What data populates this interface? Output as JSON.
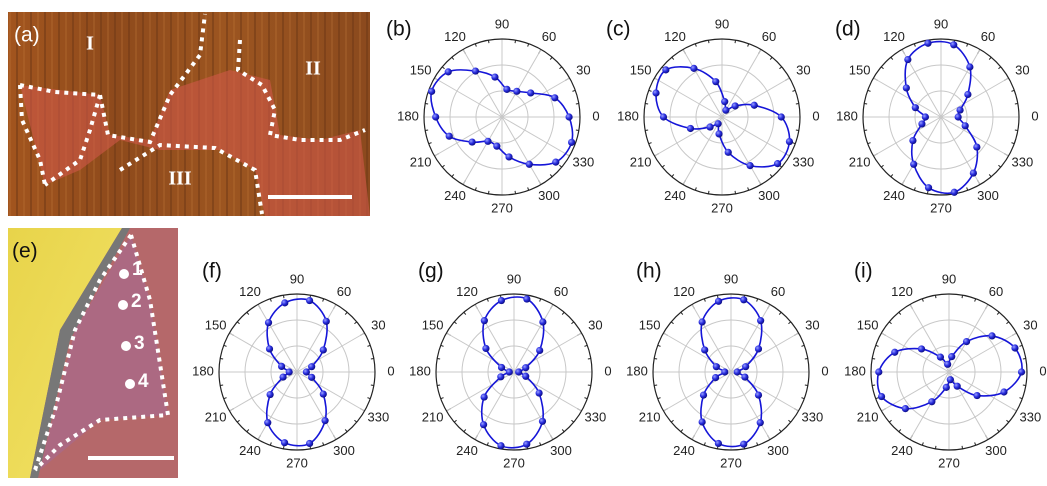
{
  "images": [
    {
      "label": "(a)",
      "regions": [
        "I",
        "II",
        "III"
      ]
    },
    {
      "label": "(e)",
      "spots": [
        "1",
        "2",
        "3",
        "4"
      ]
    }
  ],
  "chart_data": [
    {
      "type": "polar",
      "panel": "(b)",
      "color": "#1515d8",
      "rlim": [
        0,
        1
      ],
      "angle_ticks": [
        0,
        30,
        60,
        90,
        120,
        150,
        180,
        210,
        240,
        270,
        300,
        330
      ],
      "theta": [
        0,
        20,
        40,
        60,
        80,
        100,
        120,
        140,
        160,
        180,
        200,
        220,
        240,
        260,
        280,
        300,
        320,
        340
      ],
      "r": [
        0.86,
        0.72,
        0.48,
        0.38,
        0.36,
        0.52,
        0.68,
        0.9,
        0.96,
        0.85,
        0.72,
        0.5,
        0.36,
        0.38,
        0.52,
        0.7,
        0.9,
        0.95
      ]
    },
    {
      "type": "polar",
      "panel": "(c)",
      "color": "#1515d8",
      "rlim": [
        0,
        1
      ],
      "angle_ticks": [
        0,
        30,
        60,
        90,
        120,
        150,
        180,
        210,
        240,
        270,
        300,
        330
      ],
      "theta": [
        0,
        20,
        40,
        60,
        80,
        100,
        120,
        140,
        160,
        180,
        200,
        220,
        240,
        260,
        280,
        300,
        320,
        340
      ],
      "r": [
        0.76,
        0.44,
        0.22,
        0.1,
        0.2,
        0.46,
        0.72,
        0.94,
        0.9,
        0.75,
        0.43,
        0.2,
        0.1,
        0.22,
        0.46,
        0.72,
        0.93,
        0.92
      ]
    },
    {
      "type": "polar",
      "panel": "(d)",
      "color": "#1515d8",
      "rlim": [
        0,
        1
      ],
      "angle_ticks": [
        0,
        30,
        60,
        90,
        120,
        150,
        180,
        210,
        240,
        270,
        300,
        330
      ],
      "theta": [
        0,
        20,
        40,
        60,
        80,
        100,
        120,
        140,
        160,
        180,
        200,
        220,
        240,
        260,
        280,
        300,
        320,
        340
      ],
      "r": [
        0.22,
        0.26,
        0.45,
        0.74,
        0.94,
        0.96,
        0.85,
        0.58,
        0.35,
        0.2,
        0.26,
        0.47,
        0.7,
        0.92,
        0.98,
        0.83,
        0.6,
        0.33
      ]
    },
    {
      "type": "polar",
      "panel": "(f)",
      "color": "#1515d8",
      "rlim": [
        0,
        1
      ],
      "angle_ticks": [
        0,
        30,
        60,
        90,
        120,
        150,
        180,
        210,
        240,
        270,
        300,
        330
      ],
      "theta": [
        0,
        20,
        40,
        60,
        80,
        100,
        120,
        140,
        160,
        180,
        200,
        220,
        240,
        260,
        280,
        300,
        320,
        340
      ],
      "r": [
        0.12,
        0.2,
        0.44,
        0.75,
        0.93,
        0.9,
        0.73,
        0.46,
        0.21,
        0.1,
        0.19,
        0.45,
        0.75,
        0.92,
        0.93,
        0.72,
        0.44,
        0.2
      ]
    },
    {
      "type": "polar",
      "panel": "(g)",
      "color": "#1515d8",
      "rlim": [
        0,
        1
      ],
      "angle_ticks": [
        0,
        30,
        60,
        90,
        120,
        150,
        180,
        210,
        240,
        270,
        300,
        330
      ],
      "theta": [
        0,
        20,
        40,
        60,
        80,
        100,
        120,
        140,
        160,
        180,
        200,
        220,
        240,
        260,
        280,
        300,
        320,
        340
      ],
      "r": [
        0.06,
        0.16,
        0.43,
        0.74,
        0.95,
        0.93,
        0.76,
        0.47,
        0.17,
        0.06,
        0.18,
        0.5,
        0.78,
        0.96,
        0.94,
        0.73,
        0.42,
        0.16
      ]
    },
    {
      "type": "polar",
      "panel": "(h)",
      "color": "#1515d8",
      "rlim": [
        0,
        1
      ],
      "angle_ticks": [
        0,
        30,
        60,
        90,
        120,
        150,
        180,
        210,
        240,
        270,
        300,
        330
      ],
      "theta": [
        0,
        20,
        40,
        60,
        80,
        100,
        120,
        140,
        160,
        180,
        200,
        220,
        240,
        260,
        280,
        300,
        320,
        340
      ],
      "r": [
        0.08,
        0.2,
        0.46,
        0.76,
        0.94,
        0.92,
        0.74,
        0.44,
        0.2,
        0.08,
        0.21,
        0.46,
        0.74,
        0.93,
        0.94,
        0.75,
        0.46,
        0.19
      ]
    },
    {
      "type": "polar",
      "panel": "(i)",
      "color": "#1515d8",
      "rlim": [
        0,
        1
      ],
      "angle_ticks": [
        0,
        30,
        60,
        90,
        120,
        150,
        180,
        210,
        240,
        270,
        300,
        330
      ],
      "theta": [
        0,
        20,
        40,
        60,
        80,
        100,
        120,
        140,
        160,
        180,
        200,
        220,
        240,
        260,
        280,
        300,
        320,
        340
      ],
      "r": [
        0.93,
        0.9,
        0.72,
        0.45,
        0.2,
        0.1,
        0.22,
        0.46,
        0.74,
        0.9,
        0.92,
        0.73,
        0.44,
        0.2,
        0.1,
        0.21,
        0.47,
        0.75
      ]
    }
  ]
}
